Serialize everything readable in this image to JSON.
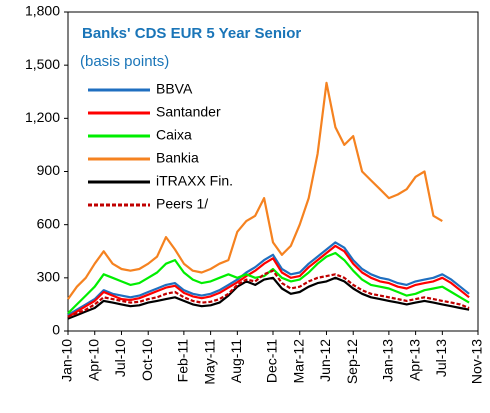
{
  "chart_data": {
    "type": "line",
    "title": "Banks' CDS EUR 5 Year Senior",
    "subtitle": "(basis points)",
    "categories": [
      "Jan-10",
      null,
      null,
      "Apr-10",
      null,
      null,
      "Jul-10",
      null,
      null,
      "Oct-10",
      null,
      null,
      null,
      "Feb-11",
      null,
      null,
      "May-11",
      null,
      null,
      "Aug-11",
      null,
      null,
      null,
      "Dec-11",
      null,
      null,
      "Mar-12",
      null,
      null,
      "Jun-12",
      null,
      null,
      "Sep-12",
      null,
      null,
      null,
      "Jan-13",
      null,
      null,
      "Apr-13",
      null,
      null,
      "Jul-13",
      null,
      null,
      null,
      "Nov-13"
    ],
    "ylim": [
      0,
      1800
    ],
    "yticks": [
      0,
      300,
      600,
      900,
      {
        "value": 1200,
        "label": "1,200"
      },
      {
        "value": 1500,
        "label": "1,500"
      },
      {
        "value": 1800,
        "label": "1,800"
      }
    ],
    "grid": false,
    "legend": "top-left",
    "series": [
      {
        "name": "BBVA",
        "color": "#1f6fc0",
        "values": [
          90,
          120,
          150,
          180,
          230,
          210,
          200,
          190,
          200,
          220,
          240,
          260,
          270,
          230,
          210,
          200,
          210,
          230,
          260,
          290,
          330,
          360,
          400,
          430,
          350,
          320,
          330,
          380,
          420,
          460,
          500,
          470,
          400,
          350,
          320,
          300,
          290,
          270,
          260,
          280,
          290,
          300,
          320,
          290,
          250,
          210,
          null
        ]
      },
      {
        "name": "Santander",
        "color": "#ff0000",
        "values": [
          80,
          110,
          140,
          170,
          220,
          200,
          180,
          175,
          185,
          205,
          225,
          245,
          255,
          215,
          195,
          185,
          195,
          215,
          245,
          275,
          310,
          340,
          380,
          410,
          330,
          300,
          310,
          360,
          400,
          440,
          480,
          450,
          380,
          330,
          300,
          280,
          270,
          250,
          240,
          260,
          270,
          280,
          300,
          270,
          230,
          190,
          null
        ]
      },
      {
        "name": "Caixa",
        "color": "#00ee00",
        "values": [
          100,
          150,
          200,
          250,
          320,
          300,
          280,
          260,
          270,
          300,
          330,
          380,
          400,
          330,
          290,
          270,
          280,
          300,
          320,
          300,
          320,
          300,
          310,
          350,
          300,
          280,
          290,
          330,
          380,
          420,
          440,
          400,
          340,
          290,
          260,
          250,
          240,
          220,
          200,
          210,
          230,
          240,
          250,
          220,
          190,
          160,
          null
        ]
      },
      {
        "name": "Bankia",
        "color": "#f58220",
        "values": [
          180,
          250,
          300,
          380,
          450,
          380,
          350,
          340,
          350,
          380,
          420,
          530,
          460,
          380,
          340,
          330,
          350,
          380,
          400,
          560,
          620,
          650,
          750,
          500,
          430,
          480,
          600,
          750,
          1000,
          1400,
          1150,
          1050,
          1100,
          900,
          850,
          800,
          750,
          770,
          800,
          870,
          900,
          650,
          620,
          null,
          null,
          null,
          null
        ]
      },
      {
        "name": "iTRAXX Fin.",
        "color": "#000000",
        "values": [
          70,
          90,
          110,
          130,
          170,
          160,
          150,
          140,
          145,
          160,
          170,
          180,
          190,
          170,
          150,
          140,
          145,
          160,
          200,
          250,
          280,
          260,
          290,
          300,
          240,
          210,
          220,
          250,
          270,
          280,
          300,
          280,
          240,
          210,
          190,
          180,
          170,
          160,
          150,
          160,
          170,
          160,
          150,
          140,
          130,
          120,
          null
        ]
      },
      {
        "name": "Peers 1/",
        "color": "#c00000",
        "dashed": true,
        "values": [
          80,
          100,
          120,
          150,
          190,
          180,
          170,
          160,
          165,
          180,
          190,
          210,
          220,
          190,
          170,
          160,
          165,
          180,
          210,
          260,
          290,
          280,
          320,
          340,
          270,
          240,
          250,
          280,
          300,
          310,
          320,
          300,
          260,
          230,
          210,
          200,
          190,
          180,
          170,
          180,
          190,
          180,
          170,
          160,
          150,
          130,
          null
        ]
      }
    ]
  }
}
